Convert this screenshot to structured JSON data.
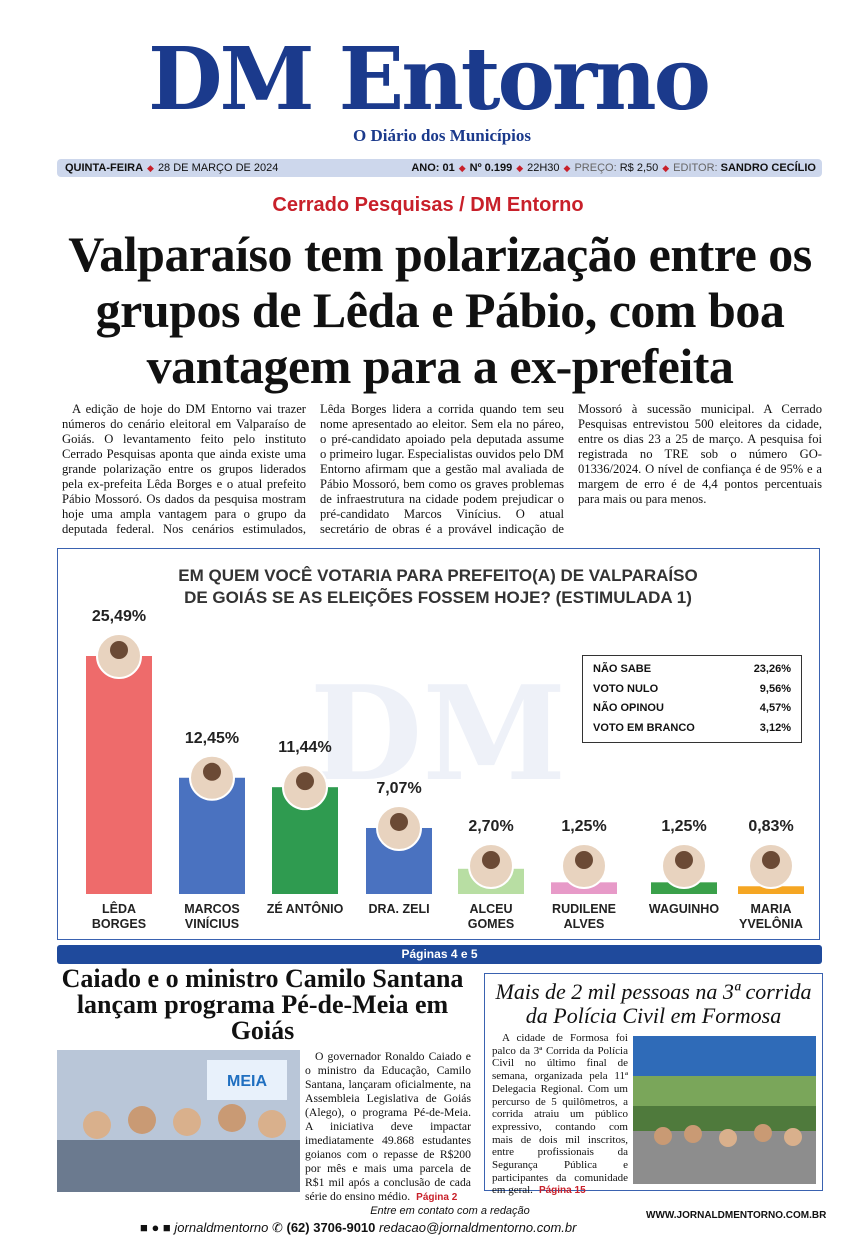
{
  "masthead": {
    "title": "DM Entorno",
    "tagline": "O Diário dos Municípios"
  },
  "date_bar": {
    "weekday": "QUINTA-FEIRA",
    "date": "28 DE MARÇO DE 2024",
    "year": "ANO: 01",
    "issue": "Nº 0.199",
    "time": "22H30",
    "price_label": "PREÇO:",
    "price": "R$ 2,50",
    "editor_label": "EDITOR:",
    "editor": "SANDRO CECÍLIO"
  },
  "lead": {
    "kicker": "Cerrado Pesquisas / DM Entorno",
    "headline": "Valparaíso tem polarização entre os grupos de Lêda e Pábio, com boa vantagem para a ex-prefeita",
    "body": "A edição de hoje do DM Entorno vai trazer números do cenário eleitoral em Valparaíso de Goiás. O levantamento feito pelo instituto Cerrado Pesquisas aponta que ainda existe uma grande polarização entre os grupos liderados pela ex-prefeita Lêda Borges e o atual prefeito Pábio Mossoró. Os dados da pesquisa mostram hoje uma ampla vantagem para o grupo da deputada federal. Nos cenários estimulados, Lêda Borges lidera a corrida quando tem seu nome apresentado ao eleitor. Sem ela no páreo, o pré-candidato apoiado pela deputada assume o primeiro lugar. Especialistas ouvidos pelo DM Entorno afirmam que a gestão mal avaliada de Pábio Mossoró, bem como os graves problemas de infraestrutura na cidade podem prejudicar o pré-candidato Marcos Vinícius. O atual secretário de obras é a provável indicação de Mossoró à sucessão municipal. A Cerrado Pesquisas entrevistou 500 eleitores da cidade, entre os dias 23 a 25 de março. A pesquisa foi registrada no TRE sob o número GO-01336/2024. O nível de confiança é de 95% e a margem de erro é de 4,4 pontos percentuais para mais ou para menos.",
    "pages": "Páginas 4 e 5"
  },
  "chart_data": {
    "type": "bar",
    "title": "EM QUEM VOCÊ VOTARIA PARA PREFEITO(A) DE VALPARAÍSO DE GOIÁS SE AS ELEIÇÕES FOSSEM HOJE? (ESTIMULADA 1)",
    "categories": [
      "LÊDA BORGES",
      "MARCOS VINÍCIUS",
      "ZÉ ANTÔNIO",
      "DRA. ZELI",
      "ALCEU GOMES",
      "RUDILENE ALVES",
      "WAGUINHO",
      "MARIA YVELÔNIA"
    ],
    "values": [
      25.49,
      12.45,
      11.44,
      7.07,
      2.7,
      1.25,
      1.25,
      0.83
    ],
    "value_labels": [
      "25,49%",
      "12,45%",
      "11,44%",
      "7,07%",
      "2,70%",
      "1,25%",
      "1,25%",
      "0,83%"
    ],
    "colors": [
      "#ee6b6b",
      "#4a72c0",
      "#2f9b50",
      "#4a72c0",
      "#b8dea3",
      "#e79ac8",
      "#3aa04a",
      "#f5a623"
    ]
  },
  "summary_table": {
    "rows": [
      [
        "NÃO SABE",
        "23,26%"
      ],
      [
        "VOTO NULO",
        "9,56%"
      ],
      [
        "NÃO OPINOU",
        "4,57%"
      ],
      [
        "VOTO EM BRANCO",
        "3,12%"
      ]
    ]
  },
  "story_2": {
    "headline": "Caiado e o ministro Camilo Santana lançam programa Pé-de-Meia em Goiás",
    "body": "O governador Ronaldo Caiado e o ministro da Educação, Camilo Santana, lançaram oficialmente, na Assembleia Legislativa de Goiás (Alego), o programa Pé-de-Meia. A iniciativa deve impactar imediatamente 49.868 estudantes goianos com o repasse de R$200 por mês e mais uma parcela de R$1 mil após a conclusão de cada série do ensino médio.",
    "page": "Página 2"
  },
  "story_3": {
    "headline": "Mais de 2 mil pessoas na 3ª corrida da Polícia Civil em Formosa",
    "body": "A cidade de Formosa foi palco da 3ª Corrida da Polícia Civil no último final de semana, organizada pela 11ª Delegacia Regional. Com um percurso de 5 quilômetros, a corrida atraiu um público expressivo, contando com mais de dois mil inscritos, entre profissionais da Segurança Pública e participantes da comunidade em geral.",
    "page": "Página 15"
  },
  "footer": {
    "social": "jornaldmentorno",
    "phone": "(62) 3706-9010",
    "contact_label": "Entre em contato com a redação",
    "email": "redacao@jornaldmentorno.com.br",
    "website": "WWW.JORNALDMENTORNO.COM.BR"
  }
}
